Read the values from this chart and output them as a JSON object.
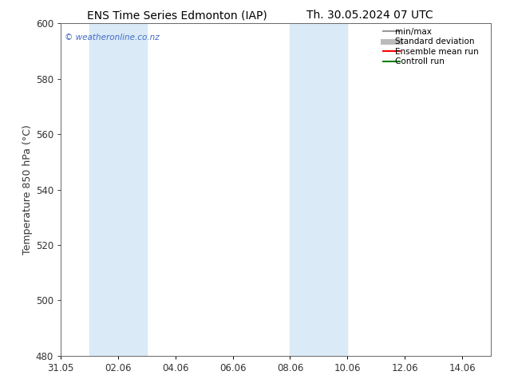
{
  "title_left": "ENS Time Series Edmonton (IAP)",
  "title_right": "Th. 30.05.2024 07 UTC",
  "ylabel": "Temperature 850 hPa (°C)",
  "ylim": [
    480,
    600
  ],
  "yticks": [
    480,
    500,
    520,
    540,
    560,
    580,
    600
  ],
  "xlim": [
    0,
    15
  ],
  "xtick_positions": [
    0,
    2,
    4,
    6,
    8,
    10,
    12,
    14
  ],
  "xtick_labels": [
    "31.05",
    "02.06",
    "04.06",
    "06.06",
    "08.06",
    "10.06",
    "12.06",
    "14.06"
  ],
  "shaded_bands": [
    {
      "x_start": 1,
      "x_end": 3,
      "color": "#daeaf6"
    },
    {
      "x_start": 8,
      "x_end": 10,
      "color": "#daeaf6"
    }
  ],
  "watermark_text": "© weatheronline.co.nz",
  "watermark_color": "#4169c8",
  "legend_entries": [
    {
      "label": "min/max",
      "color": "#999999",
      "lw": 1.5,
      "style": "solid"
    },
    {
      "label": "Standard deviation",
      "color": "#bbbbbb",
      "lw": 5,
      "style": "solid"
    },
    {
      "label": "Ensemble mean run",
      "color": "#ff0000",
      "lw": 1.5,
      "style": "solid"
    },
    {
      "label": "Controll run",
      "color": "#008000",
      "lw": 1.5,
      "style": "solid"
    }
  ],
  "bg_color": "#ffffff",
  "tick_color": "#333333",
  "spine_color": "#666666",
  "title_fontsize": 10,
  "label_fontsize": 9,
  "tick_fontsize": 8.5,
  "legend_fontsize": 7.5
}
